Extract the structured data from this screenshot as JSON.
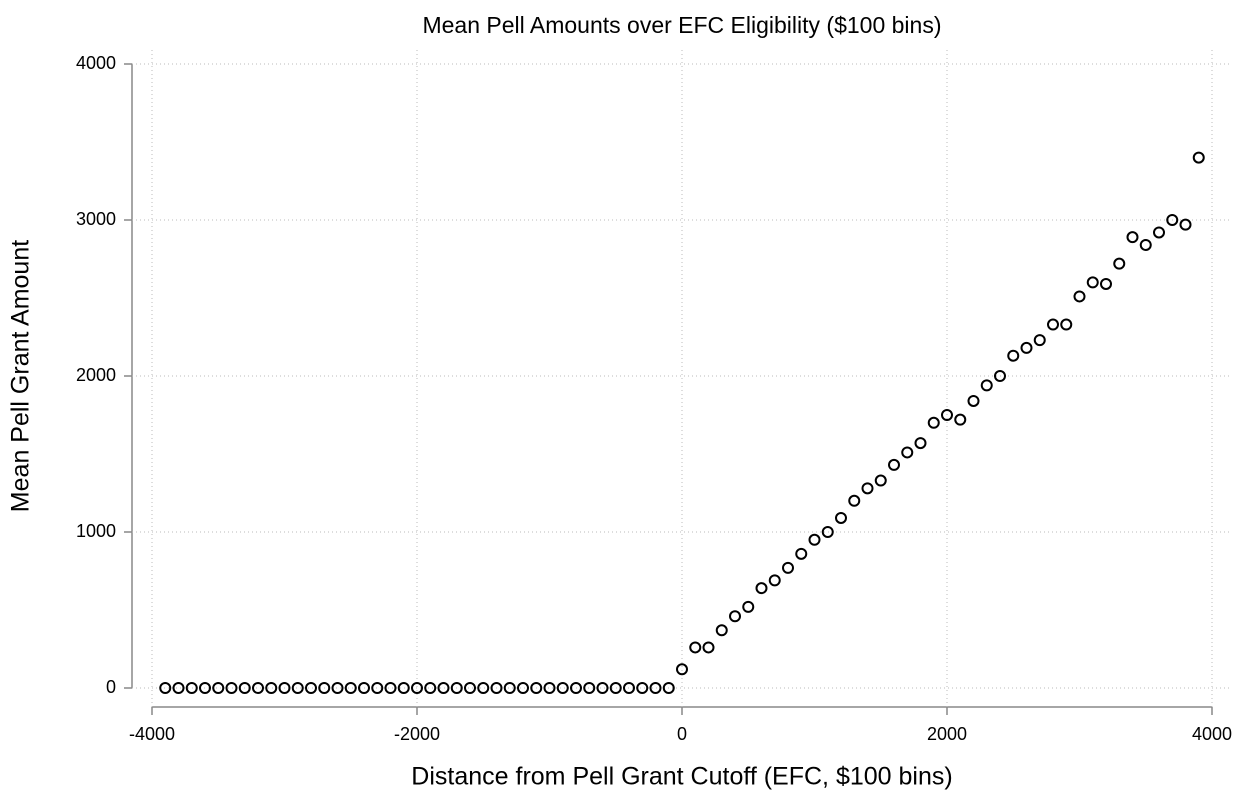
{
  "chart_data": {
    "type": "scatter",
    "title": "Mean Pell Amounts over EFC Eligibility ($100 bins)",
    "x_label": "Distance from Pell Grant Cutoff (EFC, $100 bins)",
    "y_label": "Mean Pell Grant Amount",
    "x": [
      -3900,
      -3800,
      -3700,
      -3600,
      -3500,
      -3400,
      -3300,
      -3200,
      -3100,
      -3000,
      -2900,
      -2800,
      -2700,
      -2600,
      -2500,
      -2400,
      -2300,
      -2200,
      -2100,
      -2000,
      -1900,
      -1800,
      -1700,
      -1600,
      -1500,
      -1400,
      -1300,
      -1200,
      -1100,
      -1000,
      -900,
      -800,
      -700,
      -600,
      -500,
      -400,
      -300,
      -200,
      -100,
      0,
      100,
      200,
      300,
      400,
      500,
      600,
      700,
      800,
      900,
      1000,
      1100,
      1200,
      1300,
      1400,
      1500,
      1600,
      1700,
      1800,
      1900,
      2000,
      2100,
      2200,
      2300,
      2400,
      2500,
      2600,
      2700,
      2800,
      2900,
      3000,
      3100,
      3200,
      3300,
      3400,
      3500,
      3600,
      3700,
      3800,
      3900
    ],
    "series": [
      {
        "name": "Mean Pell Grant Amount",
        "color": "#000000",
        "values": [
          0,
          0,
          0,
          0,
          0,
          0,
          0,
          0,
          0,
          0,
          0,
          0,
          0,
          0,
          0,
          0,
          0,
          0,
          0,
          0,
          0,
          0,
          0,
          0,
          0,
          0,
          0,
          0,
          0,
          0,
          0,
          0,
          0,
          0,
          0,
          0,
          0,
          0,
          0,
          120,
          260,
          260,
          370,
          460,
          520,
          640,
          690,
          770,
          860,
          950,
          1000,
          1090,
          1200,
          1280,
          1330,
          1430,
          1510,
          1570,
          1700,
          1750,
          1720,
          1840,
          1940,
          2000,
          2130,
          2180,
          2230,
          2330,
          2330,
          2510,
          2600,
          2590,
          2720,
          2890,
          2840,
          2920,
          3000,
          2970,
          3400
        ]
      }
    ],
    "xlim": [
      -4000,
      4000
    ],
    "xticks": [
      -4000,
      -2000,
      0,
      2000,
      4000
    ],
    "ylim": [
      0,
      4000
    ],
    "yticks": [
      0,
      1000,
      2000,
      3000,
      4000
    ],
    "grid": true
  }
}
